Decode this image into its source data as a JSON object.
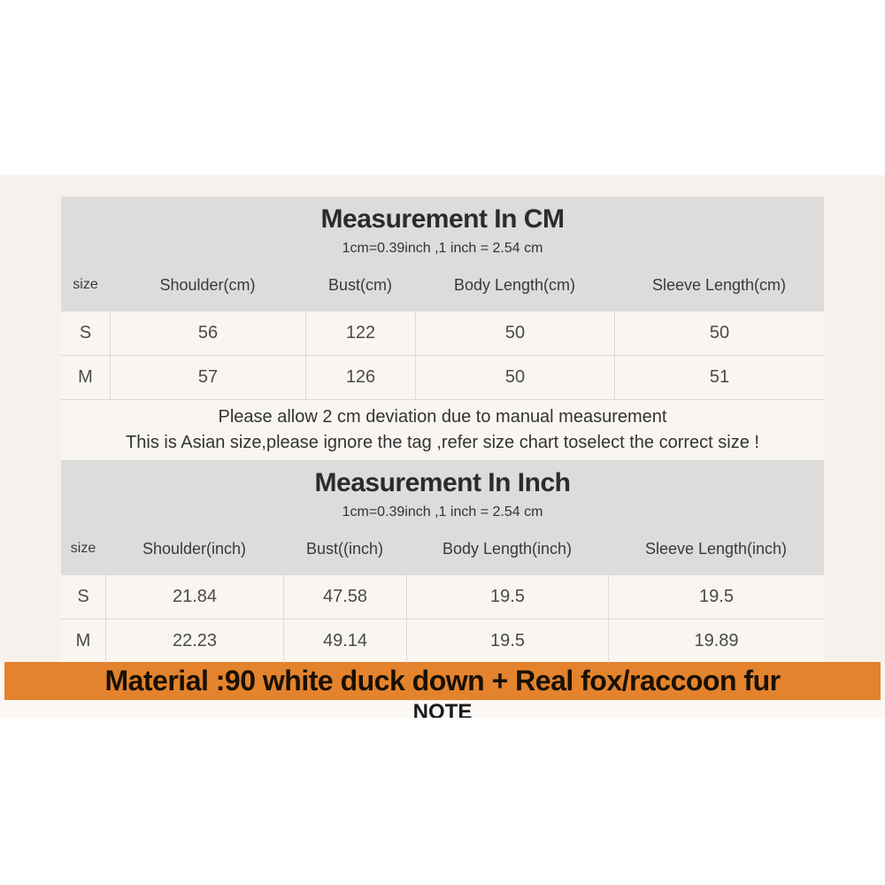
{
  "cm_table": {
    "title": "Measurement In CM",
    "subtitle": "1cm=0.39inch ,1 inch = 2.54 cm",
    "headers": [
      "size",
      "Shoulder(cm)",
      "Bust(cm)",
      "Body Length(cm)",
      "Sleeve Length(cm)"
    ],
    "rows": [
      [
        "S",
        "56",
        "122",
        "50",
        "50"
      ],
      [
        "M",
        "57",
        "126",
        "50",
        "51"
      ]
    ],
    "notes": [
      "Please allow 2 cm deviation due to manual measurement",
      "This is Asian size,please ignore the tag ,refer size chart toselect the correct size !"
    ]
  },
  "inch_table": {
    "title": "Measurement In Inch",
    "subtitle": "1cm=0.39inch ,1 inch = 2.54 cm",
    "headers": [
      "size",
      "Shoulder(inch)",
      "Bust((inch)",
      "Body Length(inch)",
      "Sleeve Length(inch)"
    ],
    "rows": [
      [
        "S",
        "21.84",
        "47.58",
        "19.5",
        "19.5"
      ],
      [
        "M",
        "22.23",
        "49.14",
        "19.5",
        "19.89"
      ]
    ]
  },
  "material_banner": {
    "text": "Material :90 white duck down + Real fox/raccoon fur",
    "background_color": "#e3832d",
    "text_color": "#191005"
  },
  "note_heading": "NOTE",
  "colors": {
    "section_header_gray": "#dcdcda",
    "row_background": "#f9f6f1",
    "page_background_beige": "#f6f1ec",
    "border": "#ddd9d3"
  }
}
